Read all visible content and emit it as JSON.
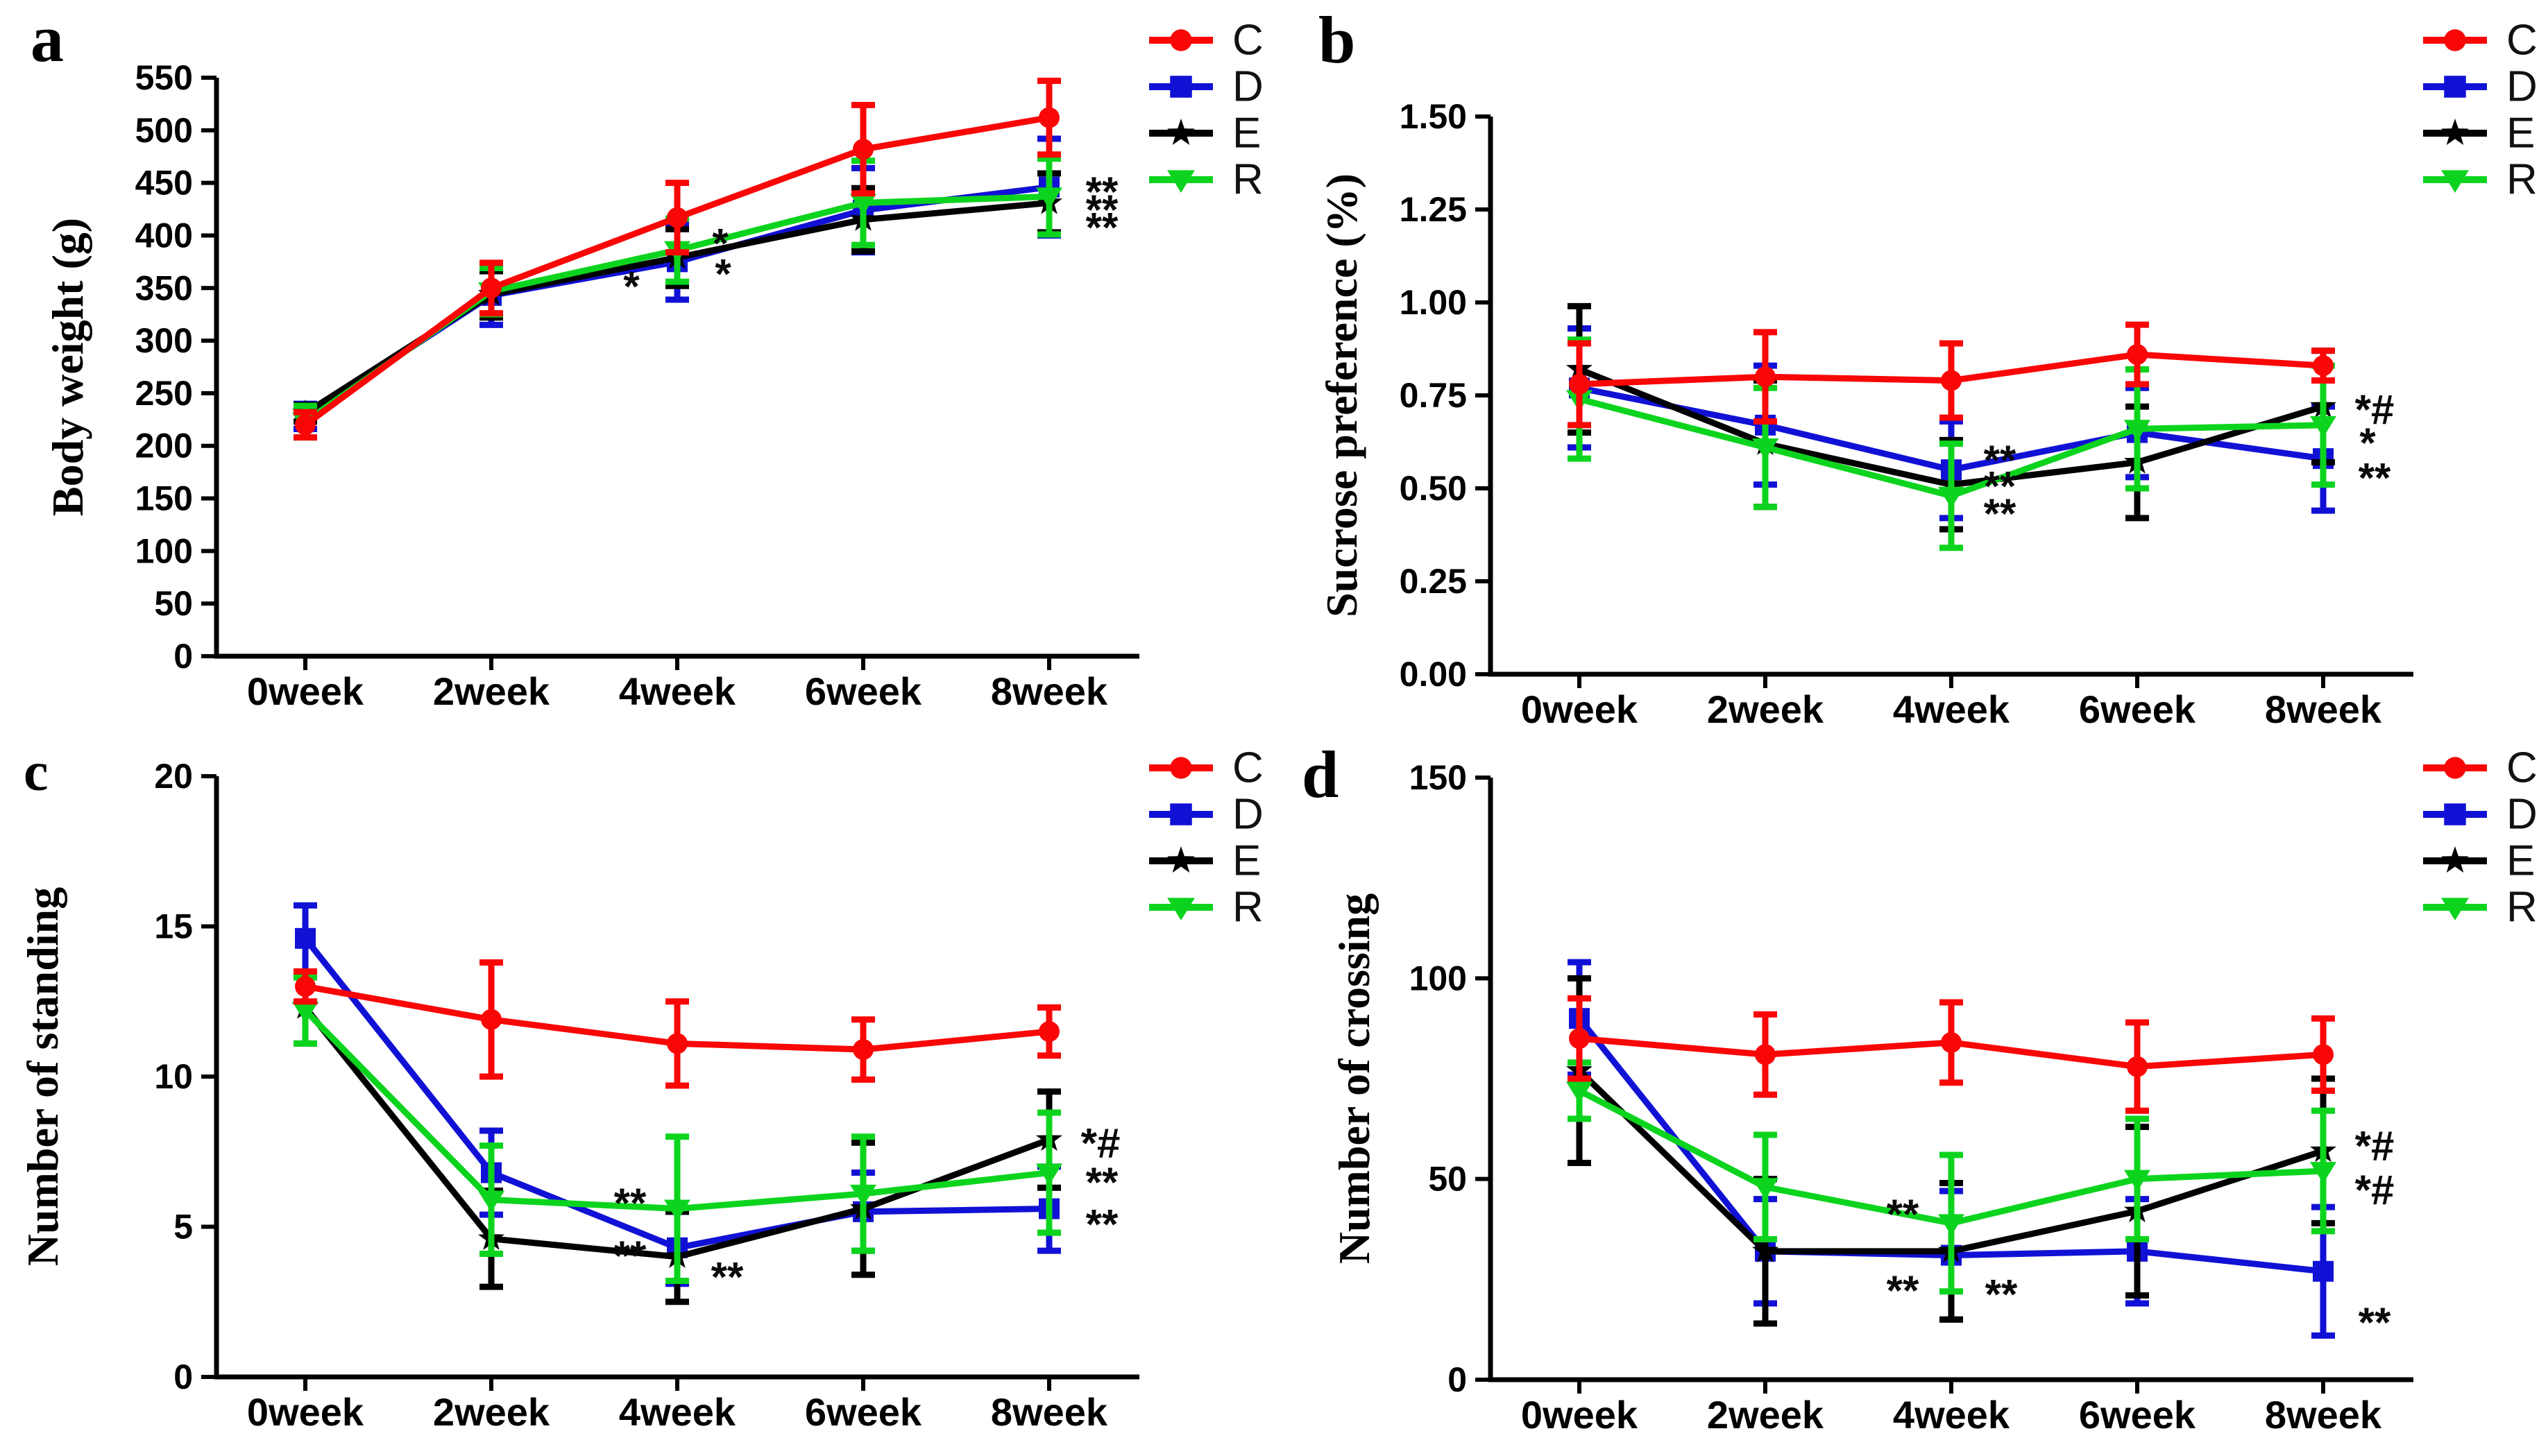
{
  "figure": {
    "background": "#ffffff"
  },
  "legend": {
    "entries": [
      {
        "label": "C",
        "color": "#f90606",
        "marker": "circle"
      },
      {
        "label": "D",
        "color": "#1111d6",
        "marker": "square"
      },
      {
        "label": "E",
        "color": "#000000",
        "marker": "star"
      },
      {
        "label": "R",
        "color": "#0cd41e",
        "marker": "triangle-down"
      }
    ],
    "position": "top-right-outside"
  },
  "chart_data": [
    {
      "type": "line",
      "panel_label": "a",
      "ylabel": "Body weight (g)",
      "xlabel": "",
      "categories": [
        "0week",
        "2week",
        "4week",
        "6week",
        "8week"
      ],
      "ylim": [
        0,
        550
      ],
      "yticks": [
        0,
        50,
        100,
        150,
        200,
        250,
        300,
        350,
        400,
        450,
        500,
        550
      ],
      "ytick_labels": [
        "0",
        "50",
        "100",
        "150",
        "200",
        "250",
        "300",
        "350",
        "400",
        "450",
        "500",
        "550"
      ],
      "grid": false,
      "series": [
        {
          "name": "C",
          "values": [
            220,
            350,
            417,
            482,
            512
          ],
          "errors": [
            12,
            24,
            33,
            42,
            35
          ]
        },
        {
          "name": "D",
          "values": [
            228,
            343,
            375,
            424,
            446
          ],
          "errors": [
            12,
            28,
            36,
            40,
            46
          ]
        },
        {
          "name": "E",
          "values": [
            231,
            344,
            379,
            415,
            431
          ],
          "errors": [
            8,
            22,
            27,
            30,
            28
          ]
        },
        {
          "name": "R",
          "values": [
            223,
            347,
            386,
            431,
            437
          ],
          "errors": [
            15,
            22,
            30,
            40,
            36
          ]
        }
      ],
      "annotations": [
        {
          "x_index": 2,
          "y": 403,
          "dx": 62,
          "text": "*"
        },
        {
          "x_index": 2,
          "y": 374,
          "dx": 66,
          "text": "*"
        },
        {
          "x_index": 2,
          "y": 362,
          "dx": -66,
          "text": "*"
        },
        {
          "x_index": 4,
          "y": 452,
          "dx": 76,
          "text": "**"
        },
        {
          "x_index": 4,
          "y": 435,
          "dx": 76,
          "text": "**"
        },
        {
          "x_index": 4,
          "y": 418,
          "dx": 76,
          "text": "**"
        }
      ]
    },
    {
      "type": "line",
      "panel_label": "b",
      "ylabel": "Sucrose preference (%)",
      "xlabel": "",
      "categories": [
        "0week",
        "2week",
        "4week",
        "6week",
        "8week"
      ],
      "ylim": [
        0,
        1.5
      ],
      "yticks": [
        0,
        0.25,
        0.5,
        0.75,
        1.0,
        1.25,
        1.5
      ],
      "ytick_labels": [
        "0.00",
        "0.25",
        "0.50",
        "0.75",
        "1.00",
        "1.25",
        "1.50"
      ],
      "grid": false,
      "series": [
        {
          "name": "C",
          "values": [
            0.78,
            0.8,
            0.79,
            0.86,
            0.83
          ],
          "errors": [
            0.11,
            0.12,
            0.1,
            0.08,
            0.04
          ]
        },
        {
          "name": "D",
          "values": [
            0.77,
            0.67,
            0.55,
            0.65,
            0.58
          ],
          "errors": [
            0.16,
            0.16,
            0.13,
            0.12,
            0.14
          ]
        },
        {
          "name": "E",
          "values": [
            0.82,
            0.62,
            0.51,
            0.57,
            0.72
          ],
          "errors": [
            0.17,
            0.17,
            0.12,
            0.15,
            0.15
          ]
        },
        {
          "name": "R",
          "values": [
            0.74,
            0.61,
            0.48,
            0.66,
            0.67
          ],
          "errors": [
            0.16,
            0.16,
            0.14,
            0.16,
            0.16
          ]
        }
      ],
      "annotations": [
        {
          "x_index": 2,
          "y": 0.605,
          "dx": 70,
          "text": "**"
        },
        {
          "x_index": 2,
          "y": 0.535,
          "dx": 70,
          "text": "**"
        },
        {
          "x_index": 2,
          "y": 0.462,
          "dx": 70,
          "text": "**"
        },
        {
          "x_index": 4,
          "y": 0.742,
          "dx": 74,
          "text": "*#"
        },
        {
          "x_index": 4,
          "y": 0.652,
          "dx": 64,
          "text": "*"
        },
        {
          "x_index": 4,
          "y": 0.558,
          "dx": 74,
          "text": "**"
        }
      ]
    },
    {
      "type": "line",
      "panel_label": "c",
      "ylabel": "Number of standing",
      "xlabel": "",
      "categories": [
        "0week",
        "2week",
        "4week",
        "6week",
        "8week"
      ],
      "ylim": [
        0,
        20
      ],
      "yticks": [
        0,
        5,
        10,
        15,
        20
      ],
      "ytick_labels": [
        "0",
        "5",
        "10",
        "15",
        "20"
      ],
      "grid": false,
      "series": [
        {
          "name": "C",
          "values": [
            13.0,
            11.9,
            11.1,
            10.9,
            11.5
          ],
          "errors": [
            0.5,
            1.9,
            1.4,
            1.0,
            0.8
          ]
        },
        {
          "name": "D",
          "values": [
            14.6,
            6.8,
            4.3,
            5.5,
            5.6
          ],
          "errors": [
            1.1,
            1.4,
            1.2,
            1.3,
            1.4
          ]
        },
        {
          "name": "E",
          "values": [
            12.3,
            4.6,
            4.0,
            5.6,
            7.9
          ],
          "errors": [
            1.2,
            1.6,
            1.5,
            2.2,
            1.6
          ]
        },
        {
          "name": "R",
          "values": [
            12.2,
            5.9,
            5.6,
            6.1,
            6.8
          ],
          "errors": [
            1.1,
            1.8,
            2.4,
            1.9,
            2.0
          ]
        }
      ],
      "annotations": [
        {
          "x_index": 2,
          "y": 6.15,
          "dx": -68,
          "text": "**"
        },
        {
          "x_index": 2,
          "y": 4.4,
          "dx": -68,
          "text": "**"
        },
        {
          "x_index": 2,
          "y": 3.7,
          "dx": 72,
          "text": "**"
        },
        {
          "x_index": 4,
          "y": 8.15,
          "dx": 74,
          "text": "*#"
        },
        {
          "x_index": 4,
          "y": 6.85,
          "dx": 76,
          "text": "**"
        },
        {
          "x_index": 4,
          "y": 5.45,
          "dx": 76,
          "text": "**"
        }
      ]
    },
    {
      "type": "line",
      "panel_label": "d",
      "ylabel": "Number of crossing",
      "xlabel": "",
      "categories": [
        "0week",
        "2week",
        "4week",
        "6week",
        "8week"
      ],
      "ylim": [
        0,
        150
      ],
      "yticks": [
        0,
        50,
        100,
        150
      ],
      "ytick_labels": [
        "0",
        "50",
        "100",
        "150"
      ],
      "grid": false,
      "series": [
        {
          "name": "C",
          "values": [
            85,
            81,
            84,
            78,
            81
          ],
          "errors": [
            10,
            10,
            10,
            11,
            9
          ]
        },
        {
          "name": "D",
          "values": [
            90,
            32,
            31,
            32,
            27
          ],
          "errors": [
            14,
            13,
            16,
            13,
            16
          ]
        },
        {
          "name": "E",
          "values": [
            77,
            32,
            32,
            42,
            57
          ],
          "errors": [
            23,
            18,
            17,
            21,
            18
          ]
        },
        {
          "name": "R",
          "values": [
            72,
            48,
            39,
            50,
            52
          ],
          "errors": [
            7,
            13,
            17,
            15,
            15
          ]
        }
      ],
      "annotations": [
        {
          "x_index": 2,
          "y": 44,
          "dx": -70,
          "text": "**"
        },
        {
          "x_index": 2,
          "y": 25,
          "dx": -70,
          "text": "**"
        },
        {
          "x_index": 2,
          "y": 24,
          "dx": 72,
          "text": "**"
        },
        {
          "x_index": 4,
          "y": 61,
          "dx": 74,
          "text": "*#"
        },
        {
          "x_index": 4,
          "y": 50,
          "dx": 74,
          "text": "*#"
        },
        {
          "x_index": 4,
          "y": 17,
          "dx": 74,
          "text": "**"
        }
      ]
    }
  ]
}
